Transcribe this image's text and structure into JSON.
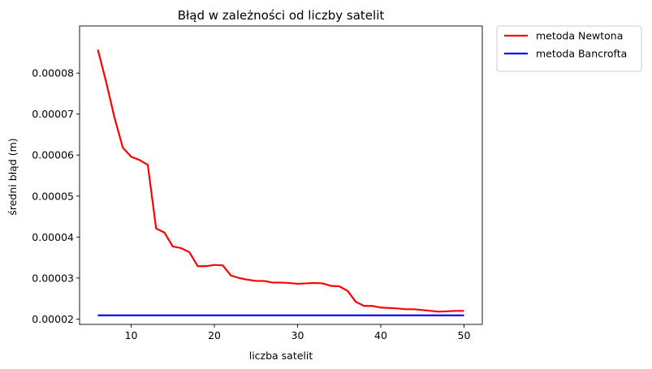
{
  "chart_data": {
    "type": "line",
    "title": "Błąd w zależności od liczby satelit",
    "xlabel": "liczba satelit",
    "ylabel": "średni błąd (m)",
    "xlim": [
      3.8,
      52.2
    ],
    "ylim": [
      1.87e-05,
      9.15e-05
    ],
    "xticks": [
      10,
      20,
      30,
      40,
      50
    ],
    "xtick_labels": [
      "10",
      "20",
      "30",
      "40",
      "50"
    ],
    "yticks": [
      2e-05,
      3e-05,
      4e-05,
      5e-05,
      6e-05,
      7e-05,
      8e-05
    ],
    "ytick_labels": [
      "0.00002",
      "0.00003",
      "0.00004",
      "0.00005",
      "0.00006",
      "0.00007",
      "0.00008"
    ],
    "grid": false,
    "legend_placement": "outside-top-right",
    "x": [
      6,
      7,
      8,
      9,
      10,
      11,
      12,
      13,
      14,
      15,
      16,
      17,
      18,
      19,
      20,
      21,
      22,
      23,
      24,
      25,
      26,
      27,
      28,
      29,
      30,
      31,
      32,
      33,
      34,
      35,
      36,
      37,
      38,
      39,
      40,
      41,
      42,
      43,
      44,
      45,
      46,
      47,
      48,
      49,
      50
    ],
    "series": [
      {
        "name": "metoda Newtona",
        "color": "#ff0000",
        "values": [
          8.57e-05,
          7.78e-05,
          6.91e-05,
          6.18e-05,
          5.96e-05,
          5.88e-05,
          5.76e-05,
          4.21e-05,
          4.11e-05,
          3.77e-05,
          3.73e-05,
          3.63e-05,
          3.29e-05,
          3.29e-05,
          3.32e-05,
          3.31e-05,
          3.06e-05,
          3e-05,
          2.96e-05,
          2.93e-05,
          2.93e-05,
          2.89e-05,
          2.89e-05,
          2.88e-05,
          2.86e-05,
          2.87e-05,
          2.88e-05,
          2.87e-05,
          2.81e-05,
          2.8e-05,
          2.69e-05,
          2.42e-05,
          2.32e-05,
          2.32e-05,
          2.28e-05,
          2.27e-05,
          2.26e-05,
          2.24e-05,
          2.24e-05,
          2.22e-05,
          2.2e-05,
          2.18e-05,
          2.19e-05,
          2.2e-05,
          2.2e-05
        ]
      },
      {
        "name": "metoda Bancrofta",
        "color": "#0000ff",
        "values": [
          2.09e-05,
          2.09e-05,
          2.09e-05,
          2.09e-05,
          2.09e-05,
          2.09e-05,
          2.09e-05,
          2.09e-05,
          2.09e-05,
          2.09e-05,
          2.09e-05,
          2.09e-05,
          2.09e-05,
          2.09e-05,
          2.09e-05,
          2.09e-05,
          2.09e-05,
          2.09e-05,
          2.09e-05,
          2.09e-05,
          2.09e-05,
          2.09e-05,
          2.09e-05,
          2.09e-05,
          2.09e-05,
          2.09e-05,
          2.09e-05,
          2.09e-05,
          2.09e-05,
          2.09e-05,
          2.09e-05,
          2.09e-05,
          2.09e-05,
          2.09e-05,
          2.09e-05,
          2.09e-05,
          2.09e-05,
          2.09e-05,
          2.09e-05,
          2.09e-05,
          2.09e-05,
          2.09e-05,
          2.09e-05,
          2.09e-05,
          2.09e-05
        ]
      }
    ]
  }
}
